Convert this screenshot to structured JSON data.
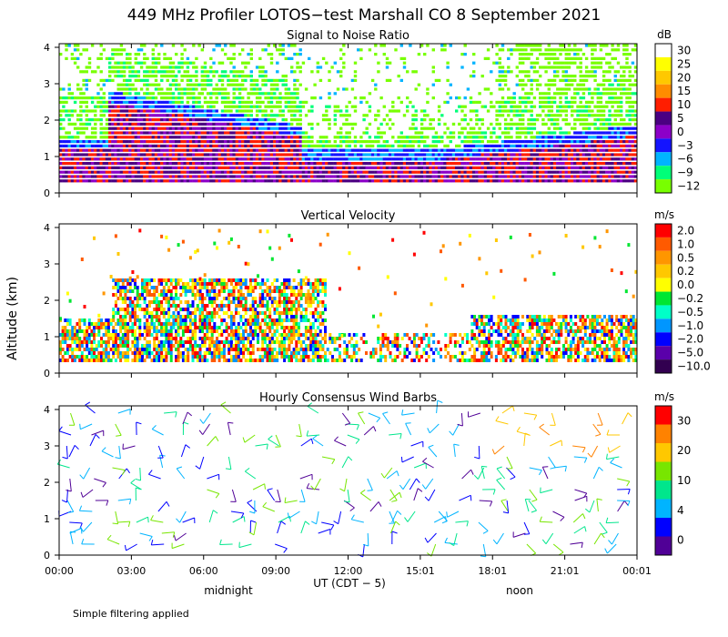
{
  "figure": {
    "title": "449 MHz Profiler LOTOS−test Marshall CO  8 September 2021",
    "ylabel": "Altitude (km)",
    "xlabel": "UT  (CDT − 5)",
    "midnight_label": "midnight",
    "noon_label": "noon",
    "footnote": "Simple filtering applied"
  },
  "chart_data": [
    {
      "type": "heatmap",
      "title": "Signal to Noise Ratio",
      "unit": "dB",
      "x_ticks": [
        "00:00",
        "03:00",
        "06:00",
        "09:00",
        "12:00",
        "15:01",
        "18:01",
        "21:01",
        "00:01"
      ],
      "xlim_hours": [
        0,
        24
      ],
      "y_ticks": [
        0,
        1,
        2,
        3,
        4
      ],
      "ylim_km": [
        0,
        4.1
      ],
      "colorbar": {
        "labels": [
          "30",
          "25",
          "20",
          "15",
          "10",
          "5",
          "0",
          "−3",
          "−6",
          "−9",
          "−12"
        ],
        "colors": [
          "#ffffff",
          "#ffff00",
          "#ffc800",
          "#ff8c00",
          "#ff1e00",
          "#4b0082",
          "#8c00c8",
          "#1414ff",
          "#00b4ff",
          "#00ff78",
          "#78ff00"
        ]
      }
    },
    {
      "type": "heatmap",
      "title": "Vertical Velocity",
      "unit": "m/s",
      "x_ticks": [
        "00:00",
        "03:00",
        "06:00",
        "09:00",
        "12:00",
        "15:01",
        "18:01",
        "21:01",
        "00:01"
      ],
      "xlim_hours": [
        0,
        24
      ],
      "y_ticks": [
        0,
        1,
        2,
        3,
        4
      ],
      "ylim_km": [
        0,
        4.1
      ],
      "colorbar": {
        "labels": [
          "2.0",
          "1.0",
          "0.5",
          "0.2",
          "0.0",
          "−0.2",
          "−0.5",
          "−1.0",
          "−2.0",
          "−5.0",
          "−10.0"
        ],
        "colors": [
          "#ff0000",
          "#ff5a00",
          "#ff9600",
          "#ffc800",
          "#ffff00",
          "#00e632",
          "#00ffc8",
          "#0096ff",
          "#0000ff",
          "#5a00aa",
          "#320050"
        ]
      }
    },
    {
      "type": "scatter",
      "title": "Hourly Consensus Wind Barbs",
      "unit": "m/s",
      "x_ticks": [
        "00:00",
        "03:00",
        "06:00",
        "09:00",
        "12:00",
        "15:01",
        "18:01",
        "21:01",
        "00:01"
      ],
      "xlim_hours": [
        0,
        24
      ],
      "y_ticks": [
        0,
        1,
        2,
        3,
        4
      ],
      "ylim_km": [
        0,
        4.1
      ],
      "colorbar": {
        "labels": [
          "30",
          "20",
          "10",
          "4",
          "0"
        ],
        "colors": [
          "#ff0000",
          "#ff8200",
          "#ffc800",
          "#78e600",
          "#00e68c",
          "#00b4ff",
          "#0000ff",
          "#500096"
        ]
      }
    }
  ]
}
